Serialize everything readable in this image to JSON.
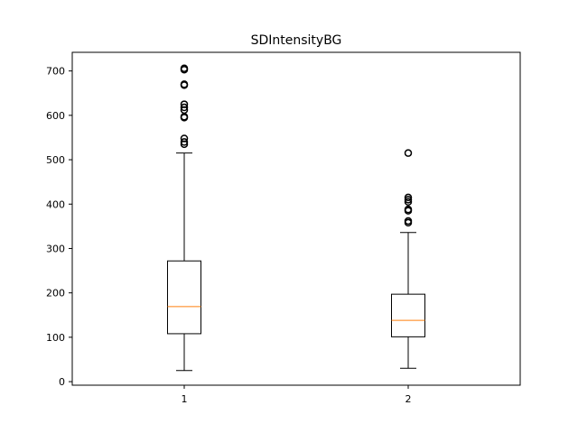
{
  "chart_data": {
    "type": "box",
    "title": "SDIntensityBG",
    "xlabel": "",
    "ylabel": "",
    "categories": [
      "1",
      "2"
    ],
    "ylim": [
      -8,
      742
    ],
    "yticks": [
      0,
      100,
      200,
      300,
      400,
      500,
      600,
      700
    ],
    "grid": false,
    "boxes": [
      {
        "label": "1",
        "whisker_low": 25,
        "q1": 108,
        "median": 169,
        "q3": 272,
        "whisker_high": 515,
        "outliers": [
          535,
          540,
          548,
          595,
          597,
          612,
          618,
          625,
          668,
          670,
          703,
          706
        ]
      },
      {
        "label": "2",
        "whisker_low": 30,
        "q1": 101,
        "median": 138,
        "q3": 197,
        "whisker_high": 336,
        "outliers": [
          358,
          362,
          385,
          388,
          405,
          410,
          415,
          515
        ]
      }
    ],
    "colors": {
      "box": "#000000",
      "median": "#ff7f0e",
      "whisker": "#000000",
      "outlier": "#000000"
    }
  }
}
